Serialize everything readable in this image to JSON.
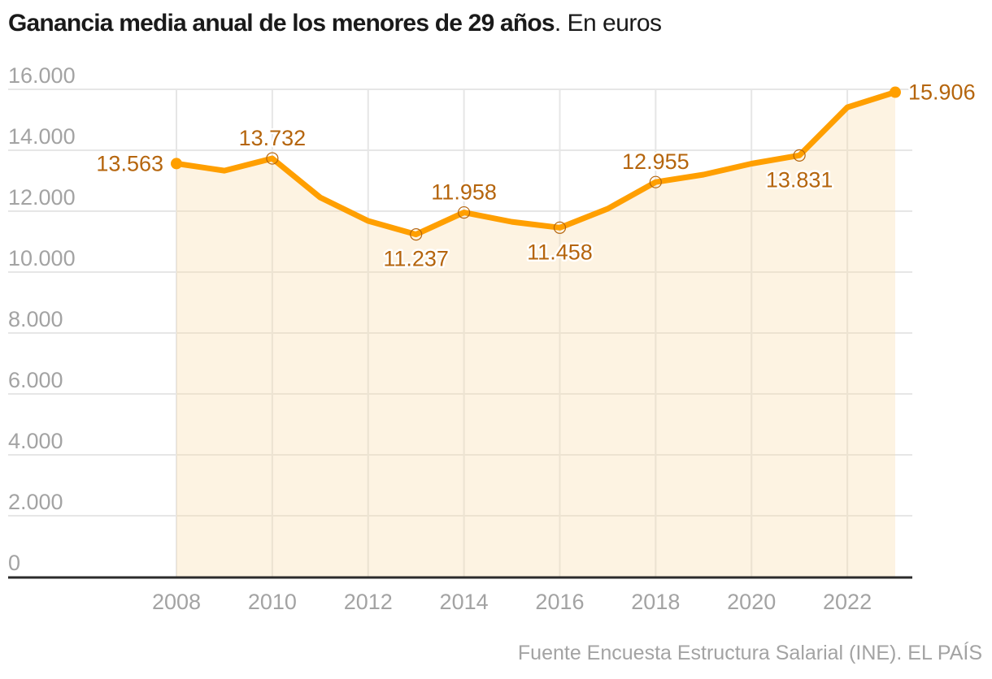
{
  "title": {
    "bold": "Ganancia media anual de los menores de 29 años",
    "regular": ". En euros"
  },
  "source": "Fuente Encuesta Estructura Salarial (INE). EL PAÍS",
  "colors": {
    "line": "#ff9f00",
    "area": "#fdf3e2",
    "label": "#b5650d",
    "grid": "#e6e6e6",
    "grid_in_area": "#ede3d1",
    "axis": "#2b2b2b",
    "tick_text": "#a3a3a3"
  },
  "chart_data": {
    "type": "area",
    "title": "Ganancia media anual de los menores de 29 años. En euros",
    "xlabel": "",
    "ylabel": "",
    "x": [
      2008,
      2009,
      2010,
      2011,
      2012,
      2013,
      2014,
      2015,
      2016,
      2017,
      2018,
      2019,
      2020,
      2021,
      2022,
      2023
    ],
    "values": [
      13563,
      13330,
      13732,
      12450,
      11680,
      11237,
      11958,
      11650,
      11458,
      12080,
      12955,
      13200,
      13560,
      13831,
      15410,
      15906
    ],
    "labeled_points": [
      {
        "x": 2008,
        "label": "13.563",
        "position": "left",
        "marker": "filled"
      },
      {
        "x": 2010,
        "label": "13.732",
        "position": "above",
        "marker": "ring"
      },
      {
        "x": 2013,
        "label": "11.237",
        "position": "below",
        "marker": "ring"
      },
      {
        "x": 2014,
        "label": "11.958",
        "position": "above",
        "marker": "ring"
      },
      {
        "x": 2016,
        "label": "11.458",
        "position": "below",
        "marker": "ring"
      },
      {
        "x": 2018,
        "label": "12.955",
        "position": "above",
        "marker": "ring"
      },
      {
        "x": 2021,
        "label": "13.831",
        "position": "below",
        "marker": "ring"
      },
      {
        "x": 2023,
        "label": "15.906",
        "position": "right",
        "marker": "filled"
      }
    ],
    "xlim": [
      2008,
      2023
    ],
    "ylim": [
      0,
      16000
    ],
    "yticks": [
      0,
      2000,
      4000,
      6000,
      8000,
      10000,
      12000,
      14000,
      16000
    ],
    "ytick_labels": [
      "0",
      "2.000",
      "4.000",
      "6.000",
      "8.000",
      "10.000",
      "12.000",
      "14.000",
      "16.000"
    ],
    "xticks": [
      2008,
      2010,
      2012,
      2014,
      2016,
      2018,
      2020,
      2022
    ],
    "xtick_labels": [
      "2008",
      "2010",
      "2012",
      "2014",
      "2016",
      "2018",
      "2020",
      "2022"
    ],
    "grid": true,
    "legend": "none"
  }
}
